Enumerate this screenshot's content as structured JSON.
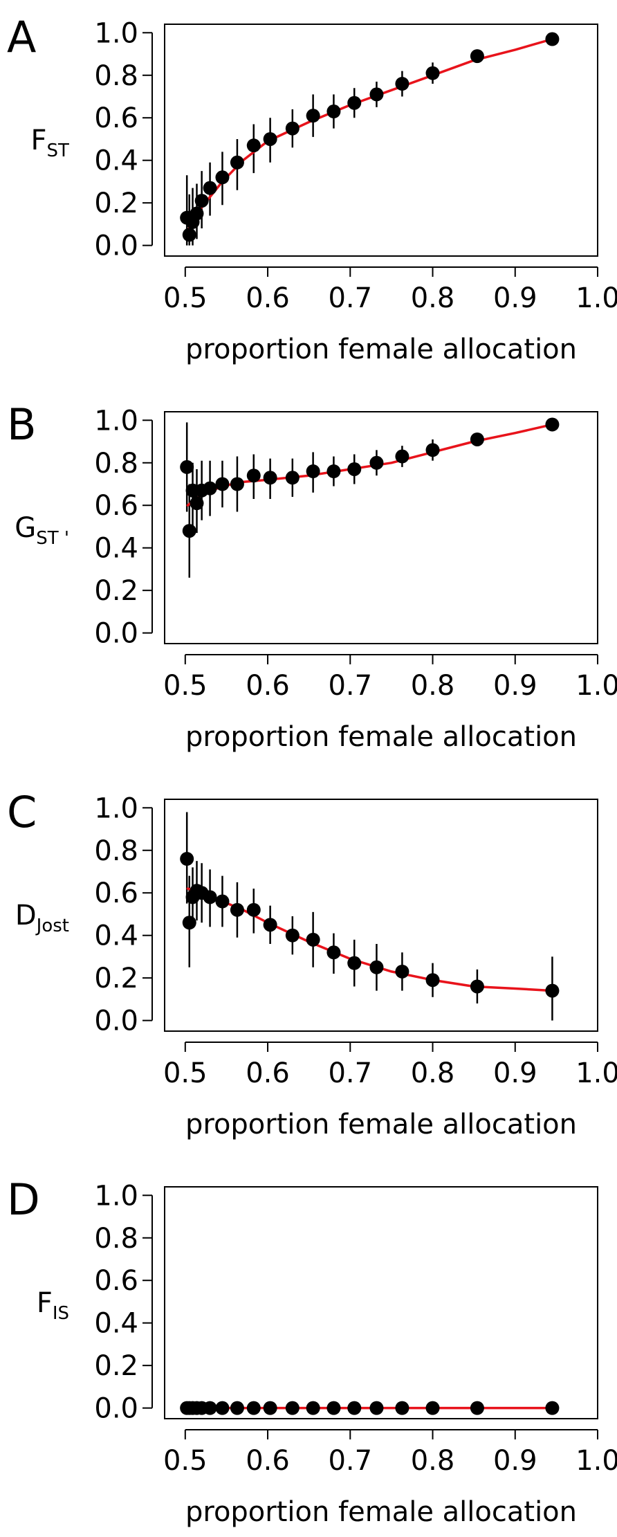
{
  "colors": {
    "points": "#000000",
    "fit_line": "#e8131b",
    "error_bars": "#000000",
    "axes": "#000000"
  },
  "chart_data": [
    {
      "panel": "A",
      "type": "scatter",
      "ylabel_main": "F",
      "ylabel_sub": "ST",
      "xlabel": "proportion female allocation",
      "xlim": [
        0.5,
        1.0
      ],
      "ylim": [
        0.0,
        1.0
      ],
      "xticks": [
        "0.5",
        "0.6",
        "0.7",
        "0.8",
        "0.9",
        "1.0"
      ],
      "yticks": [
        "0.0",
        "0.2",
        "0.4",
        "0.6",
        "0.8",
        "1.0"
      ],
      "points": [
        {
          "x": 0.502,
          "y": 0.13,
          "lo": 0.0,
          "hi": 0.33
        },
        {
          "x": 0.505,
          "y": 0.05,
          "lo": 0.0,
          "hi": 0.24
        },
        {
          "x": 0.509,
          "y": 0.11,
          "lo": 0.0,
          "hi": 0.27
        },
        {
          "x": 0.514,
          "y": 0.15,
          "lo": 0.03,
          "hi": 0.29
        },
        {
          "x": 0.52,
          "y": 0.21,
          "lo": 0.08,
          "hi": 0.35
        },
        {
          "x": 0.53,
          "y": 0.27,
          "lo": 0.14,
          "hi": 0.39
        },
        {
          "x": 0.545,
          "y": 0.32,
          "lo": 0.19,
          "hi": 0.44
        },
        {
          "x": 0.563,
          "y": 0.39,
          "lo": 0.26,
          "hi": 0.5
        },
        {
          "x": 0.583,
          "y": 0.47,
          "lo": 0.34,
          "hi": 0.57
        },
        {
          "x": 0.603,
          "y": 0.5,
          "lo": 0.39,
          "hi": 0.6
        },
        {
          "x": 0.63,
          "y": 0.55,
          "lo": 0.46,
          "hi": 0.64
        },
        {
          "x": 0.655,
          "y": 0.61,
          "lo": 0.51,
          "hi": 0.71
        },
        {
          "x": 0.68,
          "y": 0.63,
          "lo": 0.55,
          "hi": 0.71
        },
        {
          "x": 0.705,
          "y": 0.67,
          "lo": 0.6,
          "hi": 0.74
        },
        {
          "x": 0.732,
          "y": 0.71,
          "lo": 0.65,
          "hi": 0.77
        },
        {
          "x": 0.763,
          "y": 0.76,
          "lo": 0.7,
          "hi": 0.82
        },
        {
          "x": 0.8,
          "y": 0.81,
          "lo": 0.76,
          "hi": 0.86
        },
        {
          "x": 0.854,
          "y": 0.89,
          "lo": 0.86,
          "hi": 0.91
        },
        {
          "x": 0.945,
          "y": 0.97,
          "lo": 0.96,
          "hi": 0.98
        }
      ],
      "fit": [
        [
          0.503,
          0.07
        ],
        [
          0.52,
          0.18
        ],
        [
          0.545,
          0.3
        ],
        [
          0.57,
          0.4
        ],
        [
          0.6,
          0.49
        ],
        [
          0.65,
          0.58
        ],
        [
          0.7,
          0.66
        ],
        [
          0.75,
          0.73
        ],
        [
          0.8,
          0.8
        ],
        [
          0.85,
          0.87
        ],
        [
          0.9,
          0.92
        ],
        [
          0.945,
          0.97
        ]
      ]
    },
    {
      "panel": "B",
      "type": "scatter",
      "ylabel_main": "G",
      "ylabel_sub": "ST '",
      "xlabel": "proportion female allocation",
      "xlim": [
        0.5,
        1.0
      ],
      "ylim": [
        0.0,
        1.0
      ],
      "xticks": [
        "0.5",
        "0.6",
        "0.7",
        "0.8",
        "0.9",
        "1.0"
      ],
      "yticks": [
        "0.0",
        "0.2",
        "0.4",
        "0.6",
        "0.8",
        "1.0"
      ],
      "points": [
        {
          "x": 0.502,
          "y": 0.78,
          "lo": 0.57,
          "hi": 0.99
        },
        {
          "x": 0.505,
          "y": 0.48,
          "lo": 0.26,
          "hi": 0.7
        },
        {
          "x": 0.509,
          "y": 0.67,
          "lo": 0.5,
          "hi": 0.8
        },
        {
          "x": 0.514,
          "y": 0.61,
          "lo": 0.47,
          "hi": 0.77
        },
        {
          "x": 0.52,
          "y": 0.67,
          "lo": 0.53,
          "hi": 0.81
        },
        {
          "x": 0.53,
          "y": 0.68,
          "lo": 0.55,
          "hi": 0.81
        },
        {
          "x": 0.545,
          "y": 0.7,
          "lo": 0.59,
          "hi": 0.81
        },
        {
          "x": 0.563,
          "y": 0.7,
          "lo": 0.57,
          "hi": 0.83
        },
        {
          "x": 0.583,
          "y": 0.74,
          "lo": 0.63,
          "hi": 0.84
        },
        {
          "x": 0.603,
          "y": 0.73,
          "lo": 0.63,
          "hi": 0.82
        },
        {
          "x": 0.63,
          "y": 0.73,
          "lo": 0.64,
          "hi": 0.82
        },
        {
          "x": 0.655,
          "y": 0.76,
          "lo": 0.66,
          "hi": 0.85
        },
        {
          "x": 0.68,
          "y": 0.76,
          "lo": 0.69,
          "hi": 0.83
        },
        {
          "x": 0.705,
          "y": 0.77,
          "lo": 0.7,
          "hi": 0.84
        },
        {
          "x": 0.732,
          "y": 0.8,
          "lo": 0.74,
          "hi": 0.86
        },
        {
          "x": 0.763,
          "y": 0.83,
          "lo": 0.78,
          "hi": 0.88
        },
        {
          "x": 0.8,
          "y": 0.86,
          "lo": 0.81,
          "hi": 0.91
        },
        {
          "x": 0.854,
          "y": 0.91,
          "lo": 0.89,
          "hi": 0.93
        },
        {
          "x": 0.945,
          "y": 0.98,
          "lo": 0.97,
          "hi": 0.99
        }
      ],
      "fit": [
        [
          0.503,
          0.6
        ],
        [
          0.52,
          0.65
        ],
        [
          0.545,
          0.69
        ],
        [
          0.57,
          0.71
        ],
        [
          0.6,
          0.72
        ],
        [
          0.65,
          0.74
        ],
        [
          0.7,
          0.77
        ],
        [
          0.75,
          0.8
        ],
        [
          0.8,
          0.85
        ],
        [
          0.85,
          0.9
        ],
        [
          0.9,
          0.94
        ],
        [
          0.945,
          0.98
        ]
      ]
    },
    {
      "panel": "C",
      "type": "scatter",
      "ylabel_main": "D",
      "ylabel_sub": "Jost",
      "xlabel": "proportion female allocation",
      "xlim": [
        0.5,
        1.0
      ],
      "ylim": [
        0.0,
        1.0
      ],
      "xticks": [
        "0.5",
        "0.6",
        "0.7",
        "0.8",
        "0.9",
        "1.0"
      ],
      "yticks": [
        "0.0",
        "0.2",
        "0.4",
        "0.6",
        "0.8",
        "1.0"
      ],
      "points": [
        {
          "x": 0.502,
          "y": 0.76,
          "lo": 0.55,
          "hi": 0.98
        },
        {
          "x": 0.505,
          "y": 0.46,
          "lo": 0.25,
          "hi": 0.68
        },
        {
          "x": 0.509,
          "y": 0.58,
          "lo": 0.44,
          "hi": 0.72
        },
        {
          "x": 0.514,
          "y": 0.61,
          "lo": 0.47,
          "hi": 0.75
        },
        {
          "x": 0.52,
          "y": 0.6,
          "lo": 0.46,
          "hi": 0.74
        },
        {
          "x": 0.53,
          "y": 0.58,
          "lo": 0.44,
          "hi": 0.71
        },
        {
          "x": 0.545,
          "y": 0.56,
          "lo": 0.44,
          "hi": 0.68
        },
        {
          "x": 0.563,
          "y": 0.52,
          "lo": 0.39,
          "hi": 0.65
        },
        {
          "x": 0.583,
          "y": 0.52,
          "lo": 0.41,
          "hi": 0.62
        },
        {
          "x": 0.603,
          "y": 0.45,
          "lo": 0.36,
          "hi": 0.54
        },
        {
          "x": 0.63,
          "y": 0.4,
          "lo": 0.31,
          "hi": 0.49
        },
        {
          "x": 0.655,
          "y": 0.38,
          "lo": 0.25,
          "hi": 0.51
        },
        {
          "x": 0.68,
          "y": 0.32,
          "lo": 0.22,
          "hi": 0.41
        },
        {
          "x": 0.705,
          "y": 0.27,
          "lo": 0.16,
          "hi": 0.38
        },
        {
          "x": 0.732,
          "y": 0.25,
          "lo": 0.14,
          "hi": 0.36
        },
        {
          "x": 0.763,
          "y": 0.23,
          "lo": 0.14,
          "hi": 0.32
        },
        {
          "x": 0.8,
          "y": 0.19,
          "lo": 0.11,
          "hi": 0.27
        },
        {
          "x": 0.854,
          "y": 0.16,
          "lo": 0.08,
          "hi": 0.24
        },
        {
          "x": 0.945,
          "y": 0.14,
          "lo": 0.0,
          "hi": 0.3
        }
      ],
      "fit": [
        [
          0.503,
          0.62
        ],
        [
          0.52,
          0.6
        ],
        [
          0.545,
          0.56
        ],
        [
          0.57,
          0.52
        ],
        [
          0.6,
          0.46
        ],
        [
          0.65,
          0.37
        ],
        [
          0.7,
          0.29
        ],
        [
          0.75,
          0.23
        ],
        [
          0.8,
          0.19
        ],
        [
          0.85,
          0.16
        ],
        [
          0.9,
          0.15
        ],
        [
          0.945,
          0.14
        ]
      ]
    },
    {
      "panel": "D",
      "type": "scatter",
      "ylabel_main": "F",
      "ylabel_sub": "IS",
      "xlabel": "proportion female allocation",
      "xlim": [
        0.5,
        1.0
      ],
      "ylim": [
        0.0,
        1.0
      ],
      "xticks": [
        "0.5",
        "0.6",
        "0.7",
        "0.8",
        "0.9",
        "1.0"
      ],
      "yticks": [
        "0.0",
        "0.2",
        "0.4",
        "0.6",
        "0.8",
        "1.0"
      ],
      "points": [
        {
          "x": 0.502,
          "y": 0.0,
          "lo": 0.0,
          "hi": 0.0
        },
        {
          "x": 0.505,
          "y": 0.0,
          "lo": 0.0,
          "hi": 0.0
        },
        {
          "x": 0.509,
          "y": 0.0,
          "lo": 0.0,
          "hi": 0.0
        },
        {
          "x": 0.514,
          "y": 0.0,
          "lo": 0.0,
          "hi": 0.0
        },
        {
          "x": 0.52,
          "y": 0.0,
          "lo": 0.0,
          "hi": 0.0
        },
        {
          "x": 0.53,
          "y": 0.0,
          "lo": 0.0,
          "hi": 0.0
        },
        {
          "x": 0.545,
          "y": 0.0,
          "lo": 0.0,
          "hi": 0.0
        },
        {
          "x": 0.563,
          "y": 0.0,
          "lo": 0.0,
          "hi": 0.0
        },
        {
          "x": 0.583,
          "y": 0.0,
          "lo": 0.0,
          "hi": 0.0
        },
        {
          "x": 0.603,
          "y": 0.0,
          "lo": 0.0,
          "hi": 0.0
        },
        {
          "x": 0.63,
          "y": 0.0,
          "lo": 0.0,
          "hi": 0.0
        },
        {
          "x": 0.655,
          "y": 0.0,
          "lo": 0.0,
          "hi": 0.0
        },
        {
          "x": 0.68,
          "y": 0.0,
          "lo": 0.0,
          "hi": 0.0
        },
        {
          "x": 0.705,
          "y": 0.0,
          "lo": 0.0,
          "hi": 0.0
        },
        {
          "x": 0.732,
          "y": 0.0,
          "lo": 0.0,
          "hi": 0.0
        },
        {
          "x": 0.763,
          "y": 0.0,
          "lo": 0.0,
          "hi": 0.0
        },
        {
          "x": 0.8,
          "y": 0.0,
          "lo": 0.0,
          "hi": 0.0
        },
        {
          "x": 0.854,
          "y": 0.0,
          "lo": 0.0,
          "hi": 0.0
        },
        {
          "x": 0.945,
          "y": 0.0,
          "lo": 0.0,
          "hi": 0.0
        }
      ],
      "fit": [
        [
          0.503,
          0.0
        ],
        [
          0.945,
          0.0
        ]
      ]
    }
  ]
}
